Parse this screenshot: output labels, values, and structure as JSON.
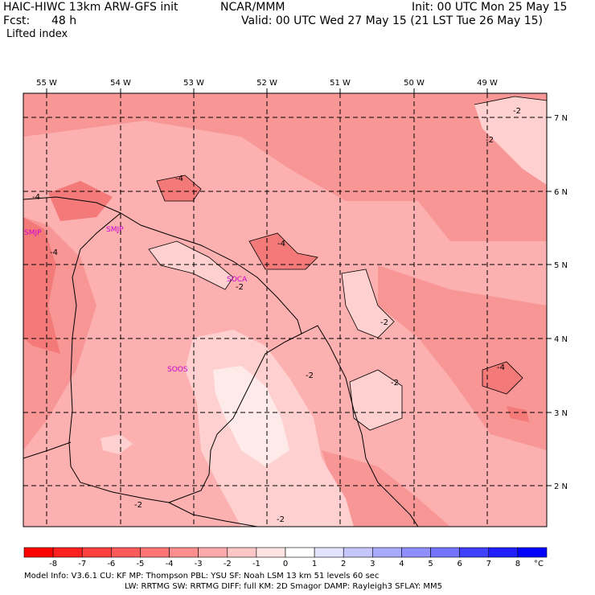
{
  "header": {
    "model_title": "HAIC-HIWC 13km ARW-GFS init",
    "institution": "NCAR/MMM",
    "init_line": "Init: 00 UTC Mon 25 May 15",
    "fcst_label": "Fcst:",
    "fcst_value": "48 h",
    "valid_line": "Valid: 00 UTC Wed 27 May 15 (21 LST Tue 26 May 15)",
    "field_name": "Lifted index"
  },
  "map": {
    "lon_labels": [
      "55 W",
      "54 W",
      "53 W",
      "52 W",
      "51 W",
      "50 W",
      "49 W"
    ],
    "lat_labels": [
      "7 N",
      "6 N",
      "5 N",
      "4 N",
      "3 N",
      "2 N"
    ],
    "stations": [
      "SMJP",
      "SOCA",
      "SMJP",
      "SOOS"
    ],
    "contour_labels": [
      "-2",
      "-2",
      "-4",
      "-4",
      "-4",
      "-4",
      "-2",
      "-2",
      "-2",
      "-2",
      "-4",
      "-2",
      "-2"
    ],
    "colors": {
      "background_field": "#fcb0b0",
      "level_m5": "#f06060",
      "level_m4": "#f47a7a",
      "level_m3": "#f89696",
      "level_m2": "#fcb0b0",
      "level_m1": "#fed0d0",
      "level_0": "#ffeaea"
    }
  },
  "colorbar": {
    "ticks": [
      "-8",
      "-7",
      "-6",
      "-5",
      "-4",
      "-3",
      "-2",
      "-1",
      "0",
      "1",
      "2",
      "3",
      "4",
      "5",
      "6",
      "7",
      "8"
    ],
    "unit": "°C",
    "colors": [
      "#ff0000",
      "#ff2020",
      "#ff4040",
      "#ff5a5a",
      "#ff7474",
      "#ff8e8e",
      "#ffaaaa",
      "#ffc6c6",
      "#ffe4e4",
      "#ffffff",
      "#e4e4ff",
      "#c6c6ff",
      "#aaaaff",
      "#8e8eff",
      "#7474ff",
      "#4040ff",
      "#2020ff",
      "#0000ff"
    ]
  },
  "footer": {
    "line1": "Model Info: V3.6.1     CU: KF       MP: Thompson     PBL: YSU       SF: Noah LSM     13 km    51 levels   60 sec",
    "line2": "LW: RRTMG    SW: RRTMG  DIFF: full    KM: 2D Smagor DAMP: Rayleigh3  SFLAY: MM5"
  }
}
